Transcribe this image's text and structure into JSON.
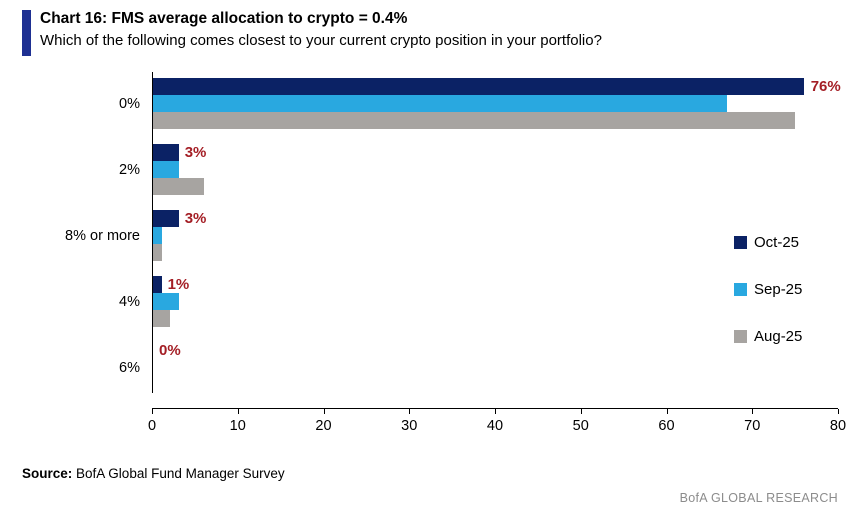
{
  "header": {
    "title": "Chart 16: FMS average allocation to crypto = 0.4%",
    "subtitle": "Which of the following comes closest to your current crypto position in your portfolio?",
    "accent_color": "#1e3092"
  },
  "chart_data": {
    "type": "bar",
    "orientation": "horizontal",
    "title": "Chart 16: FMS average allocation to crypto = 0.4%",
    "subtitle": "Which of the following comes closest to your current crypto position in your portfolio?",
    "categories": [
      "0%",
      "2%",
      "8% or more",
      "4%",
      "6%"
    ],
    "series": [
      {
        "name": "Oct-25",
        "color": "#0b2265",
        "values": [
          76,
          3,
          3,
          1,
          0
        ]
      },
      {
        "name": "Sep-25",
        "color": "#29a8e0",
        "values": [
          67,
          3,
          1,
          3,
          0
        ]
      },
      {
        "name": "Aug-25",
        "color": "#a7a4a1",
        "values": [
          75,
          6,
          1,
          2,
          0
        ]
      }
    ],
    "data_labels": [
      "76%",
      "3%",
      "3%",
      "1%",
      "0%"
    ],
    "data_label_color": "#a41e25",
    "xlim": [
      0,
      80
    ],
    "x_ticks": [
      0,
      10,
      20,
      30,
      40,
      50,
      60,
      70,
      80
    ],
    "legend_position": "right",
    "grid": false
  },
  "footer": {
    "source_label": "Source:",
    "source_text": " BofA Global Fund Manager Survey",
    "brand": "BofA GLOBAL RESEARCH"
  }
}
